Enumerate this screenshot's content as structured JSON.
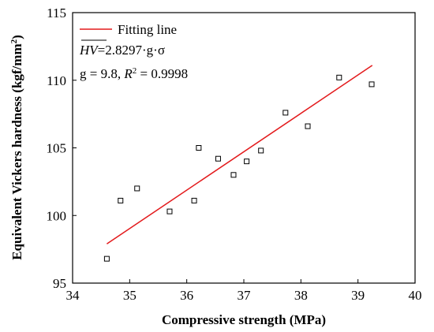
{
  "chart_data": {
    "type": "scatter",
    "xlabel": "Compressive strength (MPa)",
    "ylabel": "Equivalent Vickers hardness (kgf/mm",
    "ylabel_sup": "2",
    "ylabel_end": ")",
    "xlim": [
      34,
      40
    ],
    "ylim": [
      95,
      115
    ],
    "xticks": [
      "34",
      "35",
      "36",
      "37",
      "38",
      "39",
      "40"
    ],
    "yticks": [
      "95",
      "100",
      "105",
      "110",
      "115"
    ],
    "grid": false,
    "legend_position": "top-left",
    "series": [
      {
        "marker": "open-square",
        "color": "#000000",
        "points": [
          {
            "x": 34.6,
            "y": 96.8
          },
          {
            "x": 34.84,
            "y": 101.1
          },
          {
            "x": 35.13,
            "y": 102.0
          },
          {
            "x": 35.7,
            "y": 100.3
          },
          {
            "x": 36.13,
            "y": 101.1
          },
          {
            "x": 36.21,
            "y": 105.0
          },
          {
            "x": 36.55,
            "y": 104.2
          },
          {
            "x": 36.82,
            "y": 103.0
          },
          {
            "x": 37.05,
            "y": 104.0
          },
          {
            "x": 37.3,
            "y": 104.8
          },
          {
            "x": 37.73,
            "y": 107.6
          },
          {
            "x": 38.12,
            "y": 106.6
          },
          {
            "x": 38.67,
            "y": 110.2
          },
          {
            "x": 39.24,
            "y": 109.7
          }
        ]
      },
      {
        "name": "Fitting line",
        "type": "line",
        "color": "#e31a1c",
        "x": [
          34.6,
          39.25
        ],
        "values": [
          97.9,
          111.1
        ]
      }
    ],
    "annotations": {
      "eq_lhs": "HV",
      "eq_rhs": "=2.8297·g·σ",
      "params_g": "g = 9.8, ",
      "params_r": "R",
      "params_r_sup": "2",
      "params_r_val": " = 0.9998"
    }
  }
}
